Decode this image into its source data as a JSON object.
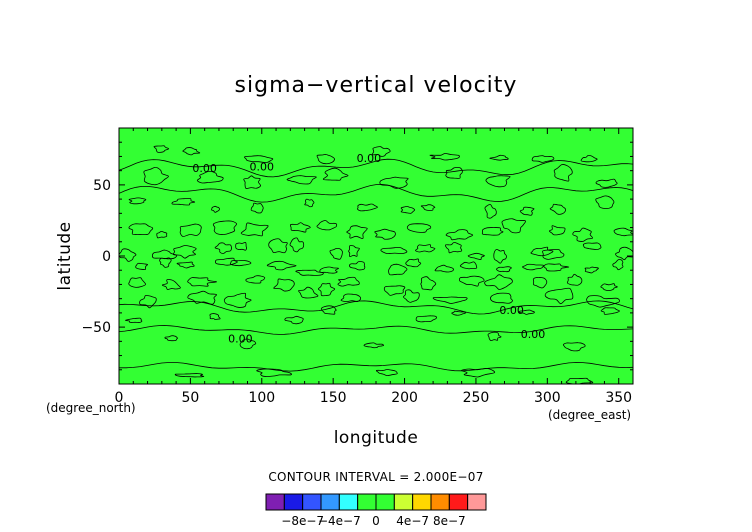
{
  "chart_data": {
    "type": "heatmap",
    "title": "sigma−vertical velocity",
    "xlabel": "longitude",
    "ylabel": "latitude",
    "x_unit": "(degree_east)",
    "y_unit": "(degree_north)",
    "xlim": [
      0,
      360
    ],
    "ylim": [
      -90,
      90
    ],
    "x_ticks": [
      0,
      50,
      100,
      150,
      200,
      250,
      300,
      350
    ],
    "y_ticks": [
      -50,
      0,
      50
    ],
    "x_tick_labels": [
      "0",
      "50",
      "100",
      "150",
      "200",
      "250",
      "300",
      "350"
    ],
    "y_tick_labels": [
      "−50",
      "0",
      "50"
    ],
    "field_fill_color": "#33ff33",
    "contour_labels": [
      {
        "text": "0.00",
        "lon": 60,
        "lat": 62
      },
      {
        "text": "0.00",
        "lon": 100,
        "lat": 63
      },
      {
        "text": "0.00",
        "lon": 175,
        "lat": 69
      },
      {
        "text": "0.00",
        "lon": 275,
        "lat": -38
      },
      {
        "text": "0.00",
        "lon": 290,
        "lat": -55
      },
      {
        "text": "0.00",
        "lon": 85,
        "lat": -58
      }
    ],
    "contour_interval_text": "CONTOUR INTERVAL = 2.000E−07",
    "colorbar": {
      "colors": [
        "#7f1fb2",
        "#1a1ae6",
        "#3355ff",
        "#3399ff",
        "#33ffff",
        "#33ff33",
        "#33ff33",
        "#ccff33",
        "#ffd700",
        "#ff8c00",
        "#ff1a1a",
        "#ff9999"
      ],
      "labels": [
        "−8e−7",
        "−4e−7",
        "0",
        "4e−7",
        "8e−7"
      ],
      "label_values": [
        -8e-07,
        -4e-07,
        0,
        4e-07,
        8e-07
      ],
      "range": [
        -1.2e-06,
        1.2e-06
      ]
    },
    "grid": false
  }
}
